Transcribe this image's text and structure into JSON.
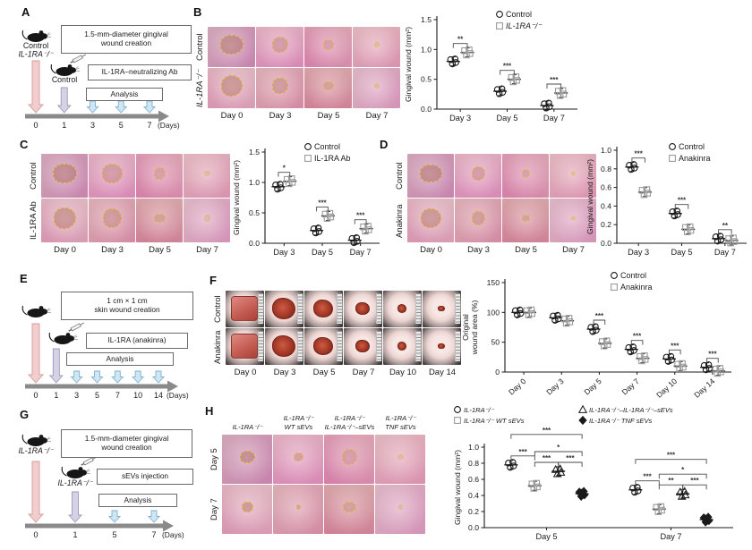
{
  "palette": {
    "arrow_day0": "#f2cdcd",
    "arrow_day0_stroke": "#d39a9a",
    "arrow_day1": "#d5d2e6",
    "arrow_day1_stroke": "#9d99bd",
    "arrow_analysis": "#cfe6f4",
    "arrow_analysis_stroke": "#7fb0cf",
    "timeline": "#8a8a8a",
    "wound_outline": "#e7c437",
    "control_marker": "#1a1a1a",
    "treatment_marker": "#9b9b9b"
  },
  "panels": {
    "A": {
      "letter": "A",
      "mouse1_lines": [
        "Control",
        "IL-1RA⁻/⁻"
      ],
      "mouse2_lines": [
        "Control"
      ],
      "boxes": [
        "1.5-mm-diameter gingival\nwound creation",
        "IL-1RA–neutralizing Ab",
        "Analysis"
      ],
      "days": [
        "0",
        "1",
        "3",
        "5",
        "7"
      ],
      "days_suffix": "(Days)"
    },
    "B": {
      "letter": "B",
      "rows": [
        "Control",
        "IL-1RA⁻/⁻"
      ],
      "rows_italic": [
        false,
        true
      ],
      "cols": [
        "Day 0",
        "Day 3",
        "Day 5",
        "Day 7"
      ]
    },
    "C": {
      "letter": "C",
      "rows": [
        "Control",
        "IL-1RA Ab"
      ],
      "rows_italic": [
        false,
        false
      ],
      "cols": [
        "Day 0",
        "Day 3",
        "Day 5",
        "Day 7"
      ]
    },
    "D": {
      "letter": "D",
      "rows": [
        "Control",
        "Anakinra"
      ],
      "rows_italic": [
        false,
        false
      ],
      "cols": [
        "Day 0",
        "Day 3",
        "Day 5",
        "Day 7"
      ]
    },
    "E": {
      "letter": "E",
      "mouse1_lines": [],
      "mouse2_lines": [],
      "boxes": [
        "1 cm × 1 cm\nskin wound creation",
        "IL-1RA (anakinra)",
        "Analysis"
      ],
      "days": [
        "0",
        "1",
        "3",
        "5",
        "7",
        "10",
        "14"
      ],
      "days_suffix": "(Days)"
    },
    "F": {
      "letter": "F",
      "rows": [
        "Control",
        "Anakinra"
      ],
      "rows_italic": [
        false,
        false
      ],
      "cols": [
        "Day 0",
        "Day 3",
        "Day 5",
        "Day 7",
        "Day 10",
        "Day 14"
      ]
    },
    "G": {
      "letter": "G",
      "mouse1_lines": [
        "IL-1RA⁻/⁻"
      ],
      "mouse2_lines": [
        "IL-1RA⁻/⁻"
      ],
      "boxes": [
        "1.5-mm-diameter gingival\nwound creation",
        "sEVs injection",
        "Analysis"
      ],
      "days": [
        "0",
        "1",
        "5",
        "7"
      ],
      "days_suffix": "(Days)"
    },
    "H": {
      "letter": "H",
      "rows": [
        "Day 5",
        "Day 7"
      ],
      "rows_italic": [
        false,
        false
      ],
      "cols": [
        [
          "IL-1RA⁻/⁻"
        ],
        [
          "IL-1RA⁻/⁻",
          "WT sEVs"
        ],
        [
          "IL-1RA⁻/⁻",
          "IL-1RA⁻/⁻–sEVs"
        ],
        [
          "IL-1RA⁻/⁻",
          "TNF sEVs"
        ]
      ]
    }
  },
  "chart_data": [
    {
      "id": "B",
      "type": "scatter",
      "ylabel": [
        "Gingival wound (mm²)"
      ],
      "ylim": [
        0,
        1.5
      ],
      "yticks": [
        "0.0",
        "0.5",
        "1.0",
        "1.5"
      ],
      "categories": [
        "Day 3",
        "Day 5",
        "Day 7"
      ],
      "legend_position": "top-right",
      "grid": false,
      "series": [
        {
          "name": "Control",
          "marker": "circle",
          "open": true,
          "color": "#1a1a1a",
          "italic": false,
          "values": [
            0.8,
            0.3,
            0.06
          ]
        },
        {
          "name": "IL-1RA⁻/⁻",
          "marker": "square",
          "open": true,
          "color": "#9b9b9b",
          "italic": true,
          "values": [
            0.95,
            0.5,
            0.27
          ]
        }
      ],
      "sig": [
        {
          "cat": 0,
          "a": 0,
          "b": 1,
          "label": "**",
          "level": 0
        },
        {
          "cat": 1,
          "a": 0,
          "b": 1,
          "label": "***",
          "level": 0
        },
        {
          "cat": 2,
          "a": 0,
          "b": 1,
          "label": "***",
          "level": 0
        }
      ]
    },
    {
      "id": "C",
      "type": "scatter",
      "ylabel": [
        "Gingival wound (mm²)"
      ],
      "ylim": [
        0,
        1.5
      ],
      "yticks": [
        "0.0",
        "0.5",
        "1.0",
        "1.5"
      ],
      "categories": [
        "Day 3",
        "Day 5",
        "Day 7"
      ],
      "legend_position": "top-right",
      "grid": false,
      "series": [
        {
          "name": "Control",
          "marker": "circle",
          "open": true,
          "color": "#1a1a1a",
          "italic": false,
          "values": [
            0.93,
            0.21,
            0.05
          ]
        },
        {
          "name": "IL-1RA Ab",
          "marker": "square",
          "open": true,
          "color": "#9b9b9b",
          "italic": false,
          "values": [
            1.02,
            0.45,
            0.24
          ]
        }
      ],
      "sig": [
        {
          "cat": 0,
          "a": 0,
          "b": 1,
          "label": "*",
          "level": 0
        },
        {
          "cat": 1,
          "a": 0,
          "b": 1,
          "label": "***",
          "level": 0
        },
        {
          "cat": 2,
          "a": 0,
          "b": 1,
          "label": "***",
          "level": 0
        }
      ]
    },
    {
      "id": "D",
      "type": "scatter",
      "ylabel": [
        "Gingival wound (mm²)"
      ],
      "ylim": [
        0,
        1.0
      ],
      "yticks": [
        "0.0",
        "0.2",
        "0.4",
        "0.6",
        "0.8",
        "1.0"
      ],
      "categories": [
        "Day 3",
        "Day 5",
        "Day 7"
      ],
      "legend_position": "top-right",
      "grid": false,
      "series": [
        {
          "name": "Control",
          "marker": "circle",
          "open": true,
          "color": "#1a1a1a",
          "italic": false,
          "values": [
            0.82,
            0.32,
            0.05
          ]
        },
        {
          "name": "Anakinra",
          "marker": "square",
          "open": true,
          "color": "#9b9b9b",
          "italic": false,
          "values": [
            0.55,
            0.15,
            0.03
          ]
        }
      ],
      "sig": [
        {
          "cat": 0,
          "a": 0,
          "b": 1,
          "label": "***",
          "level": 0
        },
        {
          "cat": 1,
          "a": 0,
          "b": 1,
          "label": "***",
          "level": 0
        },
        {
          "cat": 2,
          "a": 0,
          "b": 1,
          "label": "**",
          "level": 0
        }
      ]
    },
    {
      "id": "F",
      "type": "scatter",
      "ylabel": [
        "Original",
        "wound area (%)"
      ],
      "ylim": [
        0,
        150
      ],
      "yticks": [
        "0",
        "50",
        "100",
        "150"
      ],
      "categories": [
        "Day 0",
        "Day 3",
        "Day 5",
        "Day 7",
        "Day 10",
        "Day 14"
      ],
      "legend_position": "top-right",
      "grid": false,
      "x_tick_rotation": -42,
      "series": [
        {
          "name": "Control",
          "marker": "circle",
          "open": true,
          "color": "#1a1a1a",
          "italic": false,
          "values": [
            100,
            91,
            72,
            38,
            22,
            8
          ]
        },
        {
          "name": "Anakinra",
          "marker": "square",
          "open": true,
          "color": "#9b9b9b",
          "italic": false,
          "values": [
            100,
            86,
            48,
            23,
            10,
            2
          ]
        }
      ],
      "sig": [
        {
          "cat": 2,
          "a": 0,
          "b": 1,
          "label": "***",
          "level": 0
        },
        {
          "cat": 3,
          "a": 0,
          "b": 1,
          "label": "***",
          "level": 0
        },
        {
          "cat": 4,
          "a": 0,
          "b": 1,
          "label": "***",
          "level": 0
        },
        {
          "cat": 5,
          "a": 0,
          "b": 1,
          "label": "***",
          "level": 0
        }
      ]
    },
    {
      "id": "H",
      "type": "scatter",
      "ylabel": [
        "Gingival wound (mm²)"
      ],
      "ylim": [
        0,
        1.0
      ],
      "yticks": [
        "0.0",
        "0.2",
        "0.4",
        "0.6",
        "0.8",
        "1.0"
      ],
      "categories": [
        "Day 5",
        "Day 7"
      ],
      "legend_position": "top",
      "grid": false,
      "series": [
        {
          "name": "IL-1RA⁻/⁻",
          "marker": "circle",
          "open": true,
          "color": "#1a1a1a",
          "italic": true,
          "values": [
            0.78,
            0.47
          ]
        },
        {
          "name": "IL-1RA⁻/⁻ WT sEVs",
          "marker": "square",
          "open": true,
          "color": "#9b9b9b",
          "italic": true,
          "values": [
            0.52,
            0.23
          ]
        },
        {
          "name": "IL-1RA⁻/⁻–IL-1RA⁻/⁻–sEVs",
          "marker": "triangle",
          "open": true,
          "color": "#1a1a1a",
          "italic": true,
          "values": [
            0.7,
            0.42
          ]
        },
        {
          "name": "IL-1RA⁻/⁻ TNF sEVs",
          "marker": "diamond",
          "open": false,
          "color": "#1a1a1a",
          "italic": true,
          "values": [
            0.42,
            0.1
          ]
        }
      ],
      "sig": [
        {
          "cat": 0,
          "a": 0,
          "b": 1,
          "label": "***",
          "level": 0
        },
        {
          "cat": 0,
          "a": 1,
          "b": 2,
          "label": "***",
          "level": 0
        },
        {
          "cat": 0,
          "a": 2,
          "b": 3,
          "label": "***",
          "level": 0
        },
        {
          "cat": 0,
          "a": 1,
          "b": 3,
          "label": "*",
          "level": 1
        },
        {
          "cat": 0,
          "a": 0,
          "b": 3,
          "label": "***",
          "level": 2
        },
        {
          "cat": 1,
          "a": 0,
          "b": 1,
          "label": "***",
          "level": 0
        },
        {
          "cat": 1,
          "a": 1,
          "b": 2,
          "label": "**",
          "level": 0
        },
        {
          "cat": 1,
          "a": 2,
          "b": 3,
          "label": "***",
          "level": 0
        },
        {
          "cat": 1,
          "a": 1,
          "b": 3,
          "label": "*",
          "level": 1
        },
        {
          "cat": 1,
          "a": 0,
          "b": 3,
          "label": "***",
          "level": 2
        }
      ]
    }
  ]
}
